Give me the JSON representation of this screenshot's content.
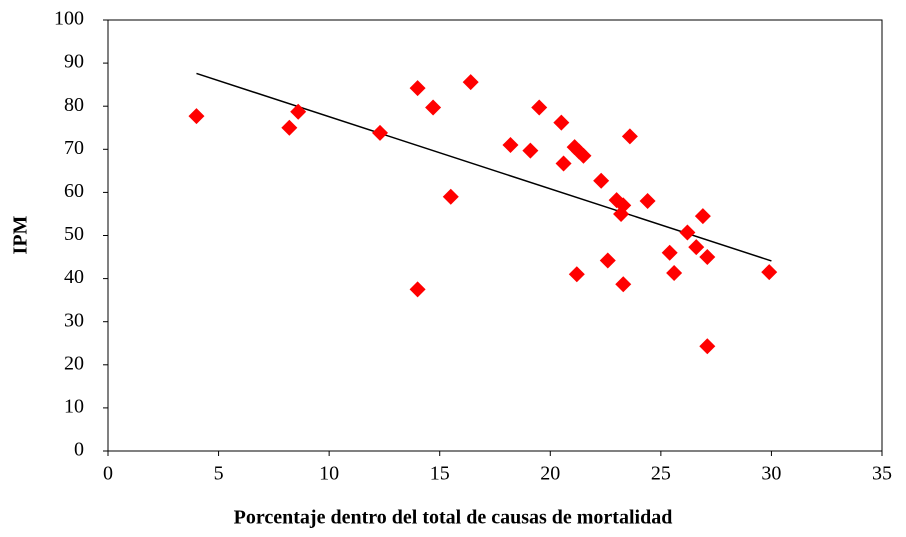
{
  "chart_data": {
    "type": "scatter",
    "xlabel": "Porcentaje dentro del total de causas de mortalidad",
    "ylabel": "IPM",
    "x": [
      4.0,
      8.2,
      8.6,
      12.3,
      14.0,
      14.7,
      16.4,
      14.0,
      15.5,
      18.2,
      19.1,
      19.5,
      20.5,
      20.6,
      21.1,
      21.3,
      21.5,
      21.2,
      22.3,
      22.6,
      23.0,
      23.2,
      23.3,
      23.3,
      23.6,
      24.4,
      25.4,
      25.6,
      26.2,
      26.6,
      26.9,
      27.1,
      27.1,
      29.9
    ],
    "values": [
      77.7,
      75,
      78.7,
      73.8,
      84.2,
      79.7,
      85.6,
      37.5,
      59,
      71,
      69.7,
      79.7,
      76.2,
      66.7,
      70.5,
      69.5,
      68.5,
      41,
      62.7,
      44.2,
      58.2,
      55,
      57,
      38.7,
      73,
      58,
      46,
      41.3,
      50.7,
      47.3,
      54.5,
      45,
      24.3,
      41.5
    ],
    "color": "#ff0000",
    "trendline": {
      "x": [
        4,
        30
      ],
      "y": [
        87.6,
        44.1
      ],
      "color": "#000000"
    },
    "xlim": [
      0,
      35
    ],
    "xticks": [
      0,
      5,
      10,
      15,
      20,
      25,
      30,
      35
    ],
    "ylim": [
      0,
      100
    ],
    "yticks": [
      0,
      10,
      20,
      30,
      40,
      50,
      60,
      70,
      80,
      90,
      100
    ],
    "grid": false
  }
}
